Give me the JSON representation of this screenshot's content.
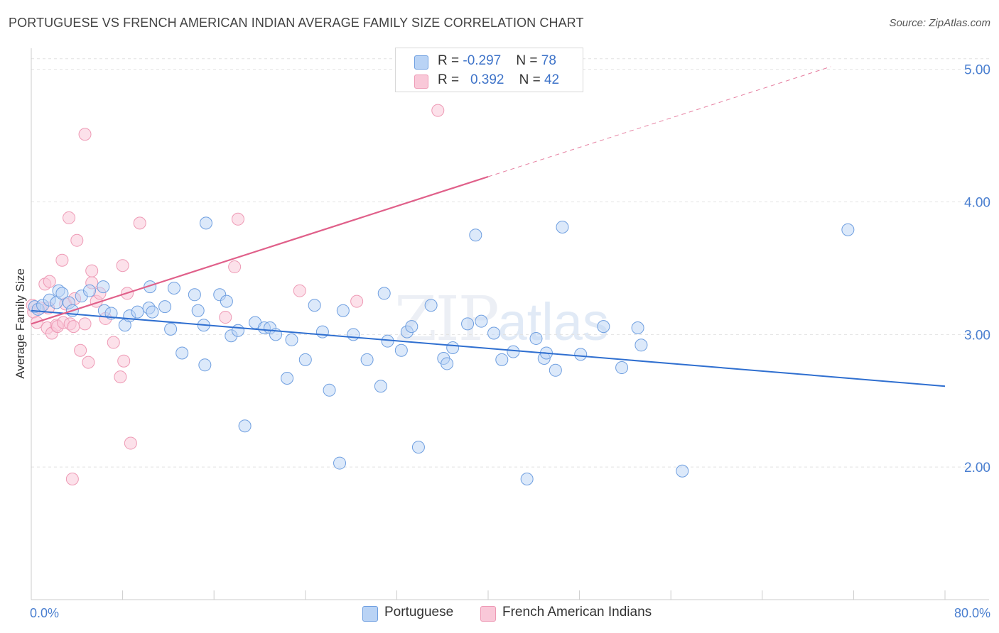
{
  "title": "PORTUGUESE VS FRENCH AMERICAN INDIAN AVERAGE FAMILY SIZE CORRELATION CHART",
  "source": "Source: ZipAtlas.com",
  "watermark": {
    "zip": "ZIP",
    "atlas": "atlas"
  },
  "legend": {
    "rows": [
      {
        "r_label": "R = ",
        "r_value": "-0.297",
        "n_label": "N = ",
        "n_value": "78",
        "color": "#b9d3f5"
      },
      {
        "r_label": "R = ",
        "r_value": "0.392",
        "n_label": "N = ",
        "n_value": "42",
        "color": "#f9c8d8"
      }
    ]
  },
  "bottom_legend": [
    {
      "label": "Portuguese",
      "color": "#b9d3f5"
    },
    {
      "label": "French American Indians",
      "color": "#f9c8d8"
    }
  ],
  "chart_data": {
    "type": "scatter",
    "title": "PORTUGUESE VS FRENCH AMERICAN INDIAN AVERAGE FAMILY SIZE CORRELATION CHART",
    "xlabel": "",
    "ylabel": "Average Family Size",
    "xlim": [
      0,
      80
    ],
    "ylim": [
      1.0,
      5.1
    ],
    "x_tick_labels": [
      "0.0%",
      "80.0%"
    ],
    "y_ticks": [
      2.0,
      3.0,
      4.0,
      5.0
    ],
    "y_tick_labels": [
      "2.00",
      "3.00",
      "4.00",
      "5.00"
    ],
    "grid": "horizontal dashed",
    "legend_position": "top-center",
    "series": [
      {
        "name": "Portuguese",
        "color": "#6f9fe0",
        "fill": "#b9d3f5",
        "trend": {
          "x": [
            0,
            80
          ],
          "y": [
            3.18,
            2.61
          ],
          "color": "#2f6fd0"
        },
        "points": [
          [
            0.3,
            3.21
          ],
          [
            0.6,
            3.19
          ],
          [
            1.0,
            3.22
          ],
          [
            1.6,
            3.26
          ],
          [
            2.2,
            3.24
          ],
          [
            2.4,
            3.33
          ],
          [
            2.7,
            3.31
          ],
          [
            3.3,
            3.24
          ],
          [
            3.6,
            3.18
          ],
          [
            4.4,
            3.29
          ],
          [
            5.1,
            3.33
          ],
          [
            6.3,
            3.36
          ],
          [
            6.4,
            3.18
          ],
          [
            7.0,
            3.16
          ],
          [
            8.2,
            3.07
          ],
          [
            8.6,
            3.14
          ],
          [
            9.3,
            3.17
          ],
          [
            10.3,
            3.2
          ],
          [
            10.4,
            3.36
          ],
          [
            10.6,
            3.17
          ],
          [
            11.7,
            3.21
          ],
          [
            12.2,
            3.04
          ],
          [
            12.5,
            3.35
          ],
          [
            13.2,
            2.86
          ],
          [
            14.3,
            3.3
          ],
          [
            14.6,
            3.18
          ],
          [
            15.1,
            3.07
          ],
          [
            15.2,
            2.77
          ],
          [
            15.3,
            3.84
          ],
          [
            16.5,
            3.3
          ],
          [
            17.1,
            3.25
          ],
          [
            17.5,
            2.99
          ],
          [
            18.1,
            3.03
          ],
          [
            18.7,
            2.31
          ],
          [
            19.6,
            3.09
          ],
          [
            20.4,
            3.05
          ],
          [
            20.9,
            3.05
          ],
          [
            21.4,
            3.0
          ],
          [
            22.4,
            2.67
          ],
          [
            22.8,
            2.96
          ],
          [
            24.0,
            2.81
          ],
          [
            24.8,
            3.22
          ],
          [
            25.5,
            3.02
          ],
          [
            26.1,
            2.58
          ],
          [
            27.0,
            2.03
          ],
          [
            27.3,
            3.18
          ],
          [
            28.2,
            3.0
          ],
          [
            29.4,
            2.81
          ],
          [
            30.6,
            2.61
          ],
          [
            30.9,
            3.31
          ],
          [
            31.2,
            2.95
          ],
          [
            32.4,
            2.88
          ],
          [
            32.9,
            3.02
          ],
          [
            33.3,
            3.06
          ],
          [
            33.9,
            2.15
          ],
          [
            35.0,
            3.22
          ],
          [
            36.1,
            2.82
          ],
          [
            36.4,
            2.78
          ],
          [
            36.9,
            2.9
          ],
          [
            38.2,
            3.08
          ],
          [
            38.9,
            3.75
          ],
          [
            39.4,
            3.1
          ],
          [
            40.5,
            3.01
          ],
          [
            41.2,
            2.81
          ],
          [
            42.2,
            2.87
          ],
          [
            43.4,
            1.91
          ],
          [
            44.2,
            2.97
          ],
          [
            44.9,
            2.82
          ],
          [
            45.1,
            2.86
          ],
          [
            45.9,
            2.73
          ],
          [
            46.5,
            3.81
          ],
          [
            48.1,
            2.85
          ],
          [
            50.1,
            3.06
          ],
          [
            51.7,
            2.75
          ],
          [
            53.1,
            3.05
          ],
          [
            53.4,
            2.92
          ],
          [
            57.0,
            1.97
          ],
          [
            71.5,
            3.79
          ]
        ]
      },
      {
        "name": "French American Indians",
        "color": "#ee9ab5",
        "fill": "#f9c8d8",
        "trend": {
          "x": [
            0,
            40
          ],
          "y": [
            3.08,
            4.19
          ],
          "color": "#e0608a",
          "dashed_extension": {
            "x": [
              40,
              70
            ],
            "y": [
              4.19,
              5.02
            ]
          }
        },
        "points": [
          [
            0.2,
            3.17
          ],
          [
            0.5,
            3.09
          ],
          [
            0.8,
            3.2
          ],
          [
            1.2,
            3.38
          ],
          [
            1.4,
            3.05
          ],
          [
            1.5,
            3.2
          ],
          [
            1.6,
            3.4
          ],
          [
            1.8,
            3.01
          ],
          [
            2.2,
            3.07
          ],
          [
            2.3,
            3.06
          ],
          [
            2.7,
            3.56
          ],
          [
            2.8,
            3.09
          ],
          [
            3.0,
            3.23
          ],
          [
            3.3,
            3.88
          ],
          [
            3.4,
            3.08
          ],
          [
            3.7,
            3.06
          ],
          [
            3.8,
            3.27
          ],
          [
            4.0,
            3.71
          ],
          [
            4.3,
            2.88
          ],
          [
            4.7,
            4.51
          ],
          [
            4.7,
            3.08
          ],
          [
            5.0,
            2.79
          ],
          [
            5.3,
            3.39
          ],
          [
            5.3,
            3.48
          ],
          [
            5.7,
            3.25
          ],
          [
            6.0,
            3.31
          ],
          [
            6.5,
            3.12
          ],
          [
            7.2,
            2.94
          ],
          [
            7.8,
            2.68
          ],
          [
            8.0,
            3.52
          ],
          [
            8.1,
            2.8
          ],
          [
            8.4,
            3.31
          ],
          [
            8.7,
            2.18
          ],
          [
            9.5,
            3.84
          ],
          [
            3.6,
            1.91
          ],
          [
            17.0,
            3.13
          ],
          [
            17.8,
            3.51
          ],
          [
            18.1,
            3.87
          ],
          [
            23.5,
            3.33
          ],
          [
            28.5,
            3.25
          ],
          [
            35.6,
            4.69
          ],
          [
            0.1,
            3.22
          ]
        ]
      }
    ]
  }
}
